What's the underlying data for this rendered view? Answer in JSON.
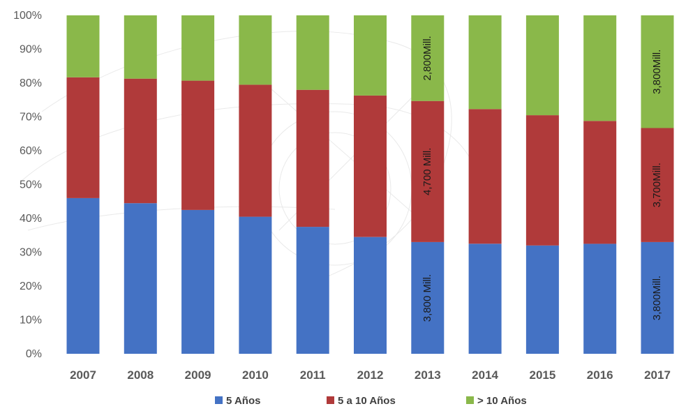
{
  "chart_data": {
    "type": "bar",
    "stacked": true,
    "percent": true,
    "categories": [
      "2007",
      "2008",
      "2009",
      "2010",
      "2011",
      "2012",
      "2013",
      "2014",
      "2015",
      "2016",
      "2017"
    ],
    "series": [
      {
        "name": "5 Años",
        "color": "#4472c4",
        "values": [
          46,
          44.5,
          42.5,
          40.5,
          37.5,
          34.5,
          33,
          32.5,
          32,
          32.5,
          33
        ]
      },
      {
        "name": "5  a 10 Años",
        "color": "#b03a3a",
        "values": [
          35.7,
          36.8,
          38.2,
          39,
          40.5,
          41.8,
          41.7,
          39.8,
          38.5,
          36.3,
          33.7
        ]
      },
      {
        "name": "> 10 Años",
        "color": "#8ab84a",
        "values": [
          18.3,
          18.7,
          19.3,
          20.5,
          22,
          23.7,
          25.3,
          27.7,
          29.5,
          31.2,
          33.3
        ]
      }
    ],
    "y_ticks": [
      "0%",
      "10%",
      "20%",
      "30%",
      "40%",
      "50%",
      "60%",
      "70%",
      "80%",
      "90%",
      "100%"
    ],
    "ylim": [
      0,
      100
    ],
    "grid": false,
    "legend_position": "bottom",
    "annotations": [
      {
        "category": "2013",
        "series": 0,
        "text": "3,800 Mill."
      },
      {
        "category": "2013",
        "series": 1,
        "text": "4,700 Mill."
      },
      {
        "category": "2013",
        "series": 2,
        "text": "2,800Mill."
      },
      {
        "category": "2017",
        "series": 0,
        "text": "3,800Mill."
      },
      {
        "category": "2017",
        "series": 1,
        "text": "3,700Mill."
      },
      {
        "category": "2017",
        "series": 2,
        "text": "3,800Mill."
      }
    ]
  }
}
